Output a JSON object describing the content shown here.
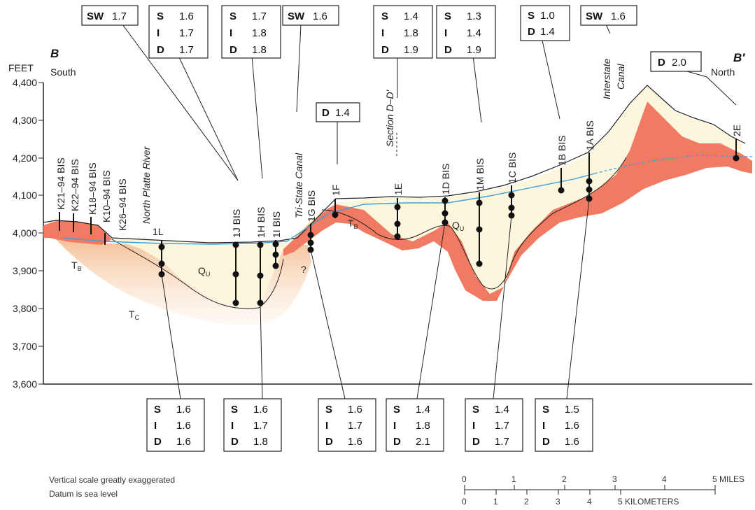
{
  "section": {
    "left_letter": "B",
    "right_letter": "B′",
    "left_dir": "South",
    "right_dir": "North",
    "y_unit": "FEET",
    "ticks": [
      "4,400",
      "4,300",
      "4,200",
      "4,100",
      "4,000",
      "3,900",
      "3,800",
      "3,700",
      "3,600"
    ]
  },
  "units": {
    "tb_left": "T",
    "tb_left_sub": "B",
    "tb_mid": "T",
    "tb_mid_sub": "B",
    "qu_left": "Q",
    "qu_left_sub": "U",
    "qu_right": "Q",
    "qu_right_sub": "U",
    "tc": "T",
    "tc_sub": "C",
    "question": "?"
  },
  "features": {
    "north_platte": "North Platte River",
    "tri_state": "Tri-State Canal",
    "section_dd": "Section D–D′",
    "interstate_1": "Interstate",
    "interstate_2": "Canal"
  },
  "wells": [
    "K21–94 BIS",
    "K22–94 BIS",
    "K18–94 BIS",
    "K10–94 BIS",
    "K26–94 BIS",
    "1L",
    "1J BIS",
    "1H BIS",
    "1I BIS",
    "1G BIS",
    "1F",
    "1E",
    "1D BIS",
    "1M BIS",
    "1C BIS",
    "1B BIS",
    "1A BIS",
    "2E"
  ],
  "boxes": [
    {
      "rows": [
        [
          "SW",
          "1.7"
        ]
      ]
    },
    {
      "rows": [
        [
          "S",
          "1.6"
        ],
        [
          "I",
          "1.7"
        ],
        [
          "D",
          "1.7"
        ]
      ]
    },
    {
      "rows": [
        [
          "S",
          "1.7"
        ],
        [
          "I",
          "1.8"
        ],
        [
          "D",
          "1.8"
        ]
      ]
    },
    {
      "rows": [
        [
          "SW",
          "1.6"
        ]
      ]
    },
    {
      "rows": [
        [
          "D",
          "1.4"
        ]
      ]
    },
    {
      "rows": [
        [
          "S",
          "1.4"
        ],
        [
          "I",
          "1.8"
        ],
        [
          "D",
          "1.9"
        ]
      ]
    },
    {
      "rows": [
        [
          "S",
          "1.3"
        ],
        [
          "I",
          "1.4"
        ],
        [
          "D",
          "1.9"
        ]
      ]
    },
    {
      "rows": [
        [
          "S",
          "1.0"
        ],
        [
          "D",
          "1.4"
        ]
      ]
    },
    {
      "rows": [
        [
          "SW",
          "1.6"
        ]
      ]
    },
    {
      "rows": [
        [
          "D",
          "2.0"
        ]
      ]
    },
    {
      "rows": [
        [
          "S",
          "1.6"
        ],
        [
          "I",
          "1.6"
        ],
        [
          "D",
          "1.6"
        ]
      ]
    },
    {
      "rows": [
        [
          "S",
          "1.6"
        ],
        [
          "I",
          "1.7"
        ],
        [
          "D",
          "1.8"
        ]
      ]
    },
    {
      "rows": [
        [
          "S",
          "1.6"
        ],
        [
          "I",
          "1.7"
        ],
        [
          "D",
          "1.6"
        ]
      ]
    },
    {
      "rows": [
        [
          "S",
          "1.4"
        ],
        [
          "I",
          "1.8"
        ],
        [
          "D",
          "2.1"
        ]
      ]
    },
    {
      "rows": [
        [
          "S",
          "1.4"
        ],
        [
          "I",
          "1.7"
        ],
        [
          "D",
          "1.7"
        ]
      ]
    },
    {
      "rows": [
        [
          "S",
          "1.5"
        ],
        [
          "I",
          "1.6"
        ],
        [
          "D",
          "1.6"
        ]
      ]
    }
  ],
  "notes": {
    "line1": "Vertical scale greatly exaggerated",
    "line2": "Datum is sea level"
  },
  "scale": {
    "miles_ticks": [
      "0",
      "1",
      "2",
      "3",
      "4",
      "5 MILES"
    ],
    "km_ticks": [
      "0",
      "1",
      "2",
      "3",
      "4",
      "5 KILOMETERS"
    ]
  },
  "colors": {
    "bedrock_tb": "#f07a62",
    "alluvium_qu": "#fbf6dc",
    "tc_fringe": "#f6caa0",
    "water_table": "#3fa0d8"
  }
}
